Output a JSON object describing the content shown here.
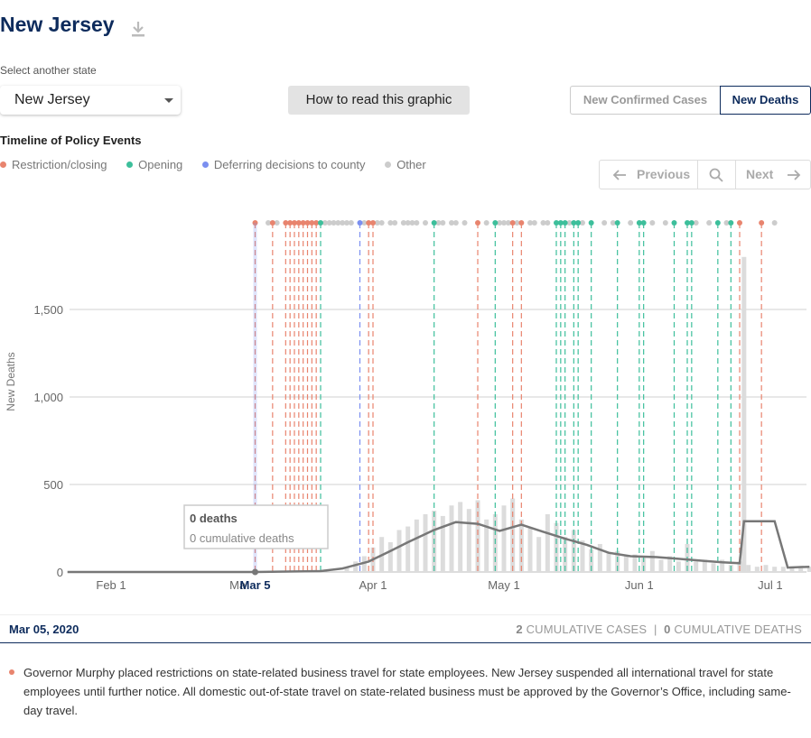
{
  "header": {
    "title": "New Jersey",
    "select_label": "Select another state",
    "selected_state": "New Jersey",
    "how_to_label": "How to read this graphic",
    "toggle_cases": "New Confirmed Cases",
    "toggle_deaths": "New Deaths",
    "active_toggle": "New Deaths"
  },
  "timeline": {
    "title": "Timeline of Policy Events",
    "legend": [
      {
        "label": "Restriction/closing",
        "color": "#e8846e"
      },
      {
        "label": "Opening",
        "color": "#3dbf9b"
      },
      {
        "label": "Deferring decisions to county",
        "color": "#7b8ff0"
      },
      {
        "label": "Other",
        "color": "#cccccc"
      }
    ],
    "nav": {
      "previous": "Previous",
      "next": "Next"
    }
  },
  "tooltip": {
    "deaths": "0 deaths",
    "cumulative": "0 cumulative deaths"
  },
  "chart_data": {
    "type": "bar",
    "ylabel": "New Deaths",
    "ylim": [
      0,
      2000
    ],
    "yticks": [
      0,
      500,
      1000,
      1500
    ],
    "ytick_labels": [
      "0",
      "500",
      "1,000",
      "1,500"
    ],
    "xtick_labels": [
      "Feb 1",
      "Ma",
      "Apr 1",
      "May 1",
      "Jun 1",
      "Jul 1"
    ],
    "selected_date_label": "Mar 5",
    "grid": true,
    "series": [
      {
        "name": "New Deaths",
        "x": [
          "2020-03-26",
          "2020-03-28",
          "2020-03-30",
          "2020-04-01",
          "2020-04-03",
          "2020-04-05",
          "2020-04-07",
          "2020-04-09",
          "2020-04-11",
          "2020-04-13",
          "2020-04-15",
          "2020-04-17",
          "2020-04-19",
          "2020-04-21",
          "2020-04-23",
          "2020-04-25",
          "2020-04-27",
          "2020-04-29",
          "2020-05-01",
          "2020-05-03",
          "2020-05-05",
          "2020-05-07",
          "2020-05-09",
          "2020-05-11",
          "2020-05-13",
          "2020-05-15",
          "2020-05-17",
          "2020-05-19",
          "2020-05-21",
          "2020-05-23",
          "2020-05-25",
          "2020-05-27",
          "2020-05-29",
          "2020-05-31",
          "2020-06-02",
          "2020-06-04",
          "2020-06-06",
          "2020-06-08",
          "2020-06-10",
          "2020-06-12",
          "2020-06-14",
          "2020-06-16",
          "2020-06-18",
          "2020-06-20",
          "2020-06-22",
          "2020-06-24",
          "2020-06-25",
          "2020-06-26",
          "2020-06-28",
          "2020-06-30",
          "2020-07-02",
          "2020-07-04",
          "2020-07-06",
          "2020-07-08",
          "2020-07-10"
        ],
        "values": [
          30,
          60,
          90,
          140,
          200,
          170,
          240,
          260,
          300,
          330,
          350,
          320,
          380,
          400,
          360,
          410,
          300,
          330,
          380,
          420,
          300,
          250,
          200,
          330,
          280,
          200,
          240,
          180,
          130,
          160,
          110,
          120,
          90,
          100,
          80,
          120,
          70,
          90,
          60,
          160,
          60,
          70,
          50,
          70,
          40,
          60,
          1800,
          40,
          30,
          40,
          30,
          30,
          30,
          30,
          30
        ]
      },
      {
        "name": "7-day average",
        "x": [
          "2020-01-22",
          "2020-03-05",
          "2020-03-20",
          "2020-03-25",
          "2020-03-31",
          "2020-04-05",
          "2020-04-09",
          "2020-04-15",
          "2020-04-20",
          "2020-04-25",
          "2020-04-30",
          "2020-05-05",
          "2020-05-10",
          "2020-05-15",
          "2020-05-20",
          "2020-05-25",
          "2020-05-30",
          "2020-06-05",
          "2020-06-10",
          "2020-06-15",
          "2020-06-20",
          "2020-06-24",
          "2020-06-25",
          "2020-07-02",
          "2020-07-05",
          "2020-07-10"
        ],
        "values": [
          0,
          0,
          5,
          20,
          60,
          120,
          170,
          240,
          285,
          275,
          235,
          270,
          230,
          190,
          155,
          110,
          90,
          85,
          75,
          65,
          55,
          50,
          290,
          290,
          25,
          30
        ]
      }
    ],
    "policy_events": [
      {
        "date": "2020-03-05",
        "type": "restriction"
      },
      {
        "date": "2020-03-09",
        "type": "restriction"
      },
      {
        "date": "2020-03-12",
        "type": "restriction"
      },
      {
        "date": "2020-03-13",
        "type": "restriction"
      },
      {
        "date": "2020-03-14",
        "type": "restriction"
      },
      {
        "date": "2020-03-15",
        "type": "restriction"
      },
      {
        "date": "2020-03-16",
        "type": "restriction"
      },
      {
        "date": "2020-03-17",
        "type": "restriction"
      },
      {
        "date": "2020-03-18",
        "type": "restriction"
      },
      {
        "date": "2020-03-19",
        "type": "restriction"
      },
      {
        "date": "2020-03-20",
        "type": "opening"
      },
      {
        "date": "2020-03-29",
        "type": "county"
      },
      {
        "date": "2020-03-31",
        "type": "restriction"
      },
      {
        "date": "2020-04-01",
        "type": "restriction"
      },
      {
        "date": "2020-04-15",
        "type": "opening"
      },
      {
        "date": "2020-04-25",
        "type": "restriction"
      },
      {
        "date": "2020-04-29",
        "type": "opening"
      },
      {
        "date": "2020-05-03",
        "type": "restriction"
      },
      {
        "date": "2020-05-05",
        "type": "restriction"
      },
      {
        "date": "2020-05-13",
        "type": "opening"
      },
      {
        "date": "2020-05-14",
        "type": "opening"
      },
      {
        "date": "2020-05-15",
        "type": "opening"
      },
      {
        "date": "2020-05-17",
        "type": "opening"
      },
      {
        "date": "2020-05-18",
        "type": "opening"
      },
      {
        "date": "2020-05-21",
        "type": "opening"
      },
      {
        "date": "2020-05-27",
        "type": "opening"
      },
      {
        "date": "2020-06-01",
        "type": "opening"
      },
      {
        "date": "2020-06-02",
        "type": "opening"
      },
      {
        "date": "2020-06-09",
        "type": "opening"
      },
      {
        "date": "2020-06-12",
        "type": "opening"
      },
      {
        "date": "2020-06-13",
        "type": "opening"
      },
      {
        "date": "2020-06-19",
        "type": "opening"
      },
      {
        "date": "2020-06-22",
        "type": "opening"
      },
      {
        "date": "2020-06-24",
        "type": "restriction"
      },
      {
        "date": "2020-06-29",
        "type": "restriction"
      }
    ],
    "other_events": [
      "2020-03-08",
      "2020-03-10",
      "2020-03-21",
      "2020-03-22",
      "2020-03-23",
      "2020-03-24",
      "2020-03-25",
      "2020-03-26",
      "2020-03-27",
      "2020-03-30",
      "2020-04-02",
      "2020-04-03",
      "2020-04-05",
      "2020-04-06",
      "2020-04-08",
      "2020-04-09",
      "2020-04-10",
      "2020-04-11",
      "2020-04-13",
      "2020-04-16",
      "2020-04-17",
      "2020-04-19",
      "2020-04-20",
      "2020-04-22",
      "2020-04-27",
      "2020-04-30",
      "2020-05-01",
      "2020-05-02",
      "2020-05-04",
      "2020-05-07",
      "2020-05-08",
      "2020-05-10",
      "2020-05-11",
      "2020-05-16",
      "2020-05-19",
      "2020-05-24",
      "2020-05-26",
      "2020-05-30",
      "2020-06-04",
      "2020-06-07",
      "2020-06-14",
      "2020-06-17",
      "2020-06-21",
      "2020-07-02"
    ]
  },
  "footer": {
    "date": "Mar 05, 2020",
    "cum_cases_num": "2",
    "cum_cases_label": "CUMULATIVE CASES",
    "separator": "|",
    "cum_deaths_num": "0",
    "cum_deaths_label": "CUMULATIVE DEATHS"
  },
  "event": {
    "color": "#e8846e",
    "text": "Governor Murphy placed restrictions on state-related business travel for state employees. New Jersey suspended all international travel for state employees until further notice. All domestic out-of-state travel on state-related business must be approved by the Governor’s Office, including same-day travel."
  }
}
